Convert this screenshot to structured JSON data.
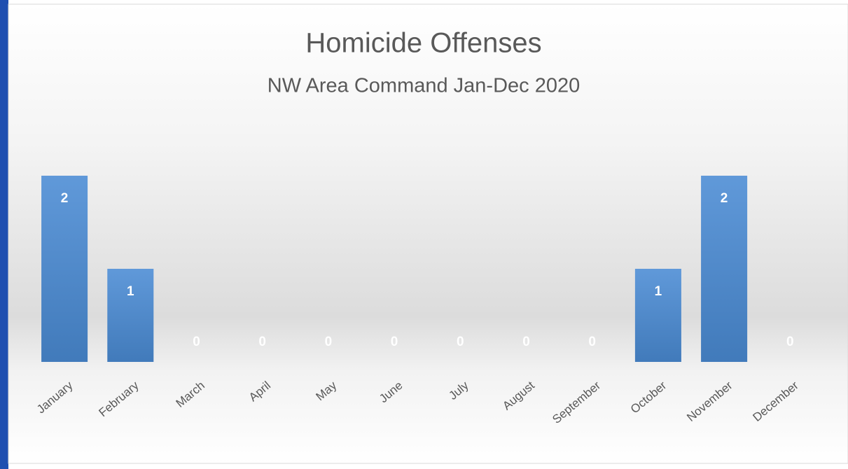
{
  "chart_data": {
    "type": "bar",
    "title": "Homicide Offenses",
    "subtitle": "NW Area Command Jan-Dec 2020",
    "categories": [
      "January",
      "February",
      "March",
      "April",
      "May",
      "June",
      "July",
      "August",
      "September",
      "October",
      "November",
      "December"
    ],
    "values": [
      2,
      1,
      0,
      0,
      0,
      0,
      0,
      0,
      0,
      1,
      2,
      0
    ],
    "color": "#4a8bd4"
  }
}
